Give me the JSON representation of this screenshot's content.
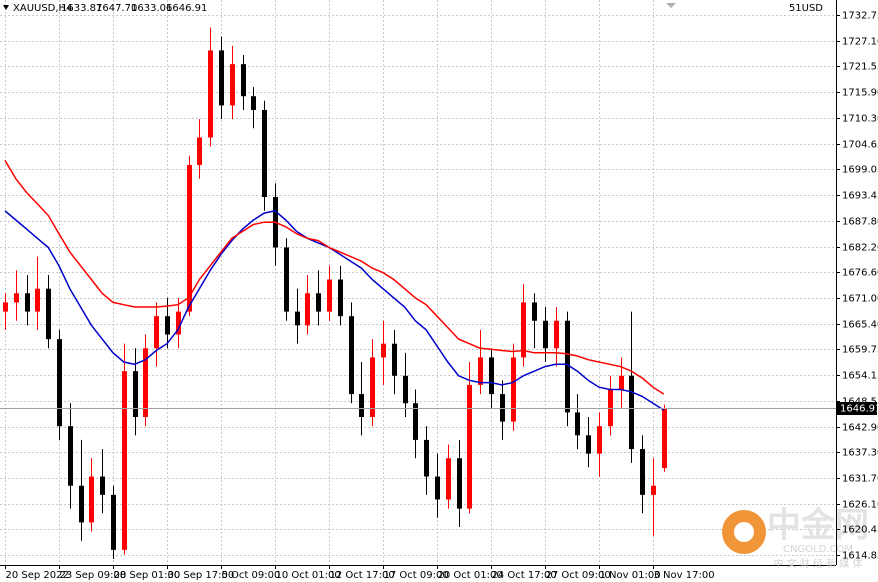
{
  "header": {
    "symbol": "XAUUSD,H4",
    "ohlc": [
      "1633.87",
      "1647.70",
      "1633.06",
      "1646.91"
    ],
    "account": "51USD"
  },
  "watermark": {
    "name": "中金网",
    "site": "CNGOLD.COM",
    "slogan": "中 文 财 经 新 媒 体"
  },
  "chart_data": {
    "type": "candlestick",
    "categories": [
      "20 Sep 2022",
      null,
      null,
      null,
      null,
      "23 Sep 09:00",
      null,
      null,
      null,
      null,
      "28 Sep 01:00",
      null,
      null,
      null,
      null,
      "30 Sep 17:00",
      null,
      null,
      null,
      null,
      "5 Oct 09:00",
      null,
      null,
      null,
      null,
      "10 Oct 01:00",
      null,
      null,
      null,
      null,
      "12 Oct 17:00",
      null,
      null,
      null,
      null,
      "17 Oct 09:00",
      null,
      null,
      null,
      null,
      "20 Oct 01:00",
      null,
      null,
      null,
      null,
      "24 Oct 17:00",
      null,
      null,
      null,
      null,
      "27 Oct 09:00",
      null,
      null,
      null,
      null,
      "1 Nov 01:00",
      null,
      null,
      null,
      null,
      "3 Nov 17:00",
      null
    ],
    "open": [
      1668,
      1670,
      1672,
      1668,
      1673,
      1662,
      1643,
      1630,
      1622,
      1632,
      1628,
      1616,
      1655,
      1645,
      1660,
      1667,
      1663,
      1668,
      1700,
      1706,
      1725,
      1713,
      1722,
      1715,
      1712,
      1693,
      1682,
      1668,
      1665,
      1672,
      1668,
      1675,
      1667,
      1650,
      1645,
      1658,
      1661,
      1654,
      1648,
      1640,
      1632,
      1627,
      1636,
      1625,
      1652,
      1658,
      1650,
      1644,
      1658,
      1670,
      1666,
      1660,
      1666,
      1646,
      1641,
      1637,
      1643,
      1651,
      1654,
      1638,
      1628,
      1633.87
    ],
    "high": [
      1672,
      1677,
      1676,
      1680,
      1676,
      1664,
      1648,
      1640,
      1636,
      1638,
      1630,
      1661,
      1660,
      1663,
      1670,
      1671,
      1671,
      1702,
      1710,
      1730,
      1728,
      1726,
      1724,
      1717,
      1714,
      1696,
      1684,
      1673,
      1676,
      1677,
      1678,
      1678,
      1670,
      1657,
      1662,
      1666,
      1664,
      1659,
      1651,
      1643,
      1637,
      1639,
      1640,
      1657,
      1664,
      1660,
      1653,
      1661,
      1674,
      1672,
      1669,
      1669,
      1668,
      1650,
      1645,
      1646,
      1654,
      1658,
      1668,
      1641,
      1636,
      1647.7
    ],
    "low": [
      1664,
      1666,
      1665,
      1664,
      1660,
      1640,
      1625,
      1618,
      1620,
      1624,
      1614,
      1615,
      1641,
      1643,
      1656,
      1660,
      1660,
      1667,
      1697,
      1704,
      1710,
      1710,
      1712,
      1708,
      1690,
      1678,
      1666,
      1661,
      1663,
      1665,
      1666,
      1665,
      1648,
      1641,
      1643,
      1652,
      1650,
      1645,
      1636,
      1628,
      1623,
      1625,
      1621,
      1624,
      1650,
      1647,
      1640,
      1642,
      1656,
      1660,
      1657,
      1656,
      1643,
      1638,
      1634,
      1632,
      1641,
      1647,
      1635,
      1624,
      1619,
      1633.06
    ],
    "close": [
      1670,
      1672,
      1668,
      1673,
      1662,
      1643,
      1630,
      1622,
      1632,
      1628,
      1616,
      1655,
      1645,
      1660,
      1667,
      1663,
      1668,
      1700,
      1706,
      1725,
      1713,
      1722,
      1715,
      1712,
      1693,
      1682,
      1668,
      1665,
      1672,
      1668,
      1675,
      1667,
      1650,
      1645,
      1658,
      1661,
      1654,
      1648,
      1640,
      1632,
      1627,
      1636,
      1625,
      1652,
      1658,
      1650,
      1644,
      1658,
      1670,
      1666,
      1660,
      1666,
      1646,
      1641,
      1637,
      1643,
      1651,
      1654,
      1638,
      1628,
      1630,
      1646.91
    ],
    "up_color": "#ff0000",
    "down_color": "#000000",
    "ma": [
      {
        "color": "#0000cc",
        "values": [
          1690,
          1688,
          1686,
          1684,
          1682,
          1678,
          1673,
          1669,
          1665,
          1662,
          1659,
          1657,
          1656.5,
          1657.5,
          1659.5,
          1661,
          1664,
          1669,
          1673,
          1677,
          1680.5,
          1683.5,
          1686,
          1688,
          1689.5,
          1690,
          1688,
          1685.5,
          1684,
          1683,
          1682,
          1680.5,
          1679,
          1677.5,
          1675,
          1673,
          1671,
          1669,
          1666,
          1664,
          1660.5,
          1657,
          1654,
          1653,
          1652.5,
          1652.5,
          1652,
          1652.5,
          1654,
          1655,
          1656,
          1656.5,
          1656.5,
          1655,
          1653,
          1651.5,
          1651,
          1651,
          1650.5,
          1649.5,
          1648,
          1646.5
        ]
      },
      {
        "color": "#ff0000",
        "values": [
          1701,
          1697,
          1694,
          1691.5,
          1689,
          1685,
          1681,
          1678,
          1675,
          1672,
          1670,
          1669.5,
          1669,
          1669,
          1669,
          1669.2,
          1669.5,
          1671,
          1675,
          1678,
          1681,
          1684,
          1685.5,
          1687,
          1687.5,
          1687.5,
          1686.5,
          1685,
          1684,
          1683.5,
          1682,
          1681,
          1680,
          1679,
          1677.5,
          1676.5,
          1675,
          1673,
          1671,
          1669.5,
          1667,
          1664.5,
          1662,
          1661,
          1660,
          1659.8,
          1659.5,
          1659.3,
          1659.5,
          1659,
          1659,
          1659,
          1658.8,
          1658.3,
          1657.5,
          1657,
          1656.5,
          1656,
          1655,
          1653.5,
          1651.5,
          1650
        ]
      }
    ],
    "ylim": [
      1612.7,
      1736.0
    ],
    "yticks": [
      1732.75,
      {
        "value": 1727.1,
        "label": "1727.10"
      },
      1721.55,
      {
        "value": 1715.9,
        "label": "1715.90"
      },
      {
        "value": 1710.3,
        "label": "1710.30"
      },
      1704.65,
      1699.05,
      1693.45,
      {
        "value": 1687.8,
        "label": "1687.80"
      },
      {
        "value": 1682.2,
        "label": "1682.20"
      },
      {
        "value": 1676.6,
        "label": "1676.60"
      },
      {
        "value": 1671,
        "label": "1671.00"
      },
      {
        "value": 1665.4,
        "label": "1665.40"
      },
      1659.75,
      1654.15,
      1648.55,
      {
        "value": 1642.9,
        "label": "1642.90"
      },
      {
        "value": 1637.3,
        "label": "1637.30"
      },
      {
        "value": 1631.7,
        "label": "1631.70"
      },
      {
        "value": 1626.1,
        "label": "1626.10"
      },
      1620.45,
      1614.85
    ],
    "grid": true
  }
}
